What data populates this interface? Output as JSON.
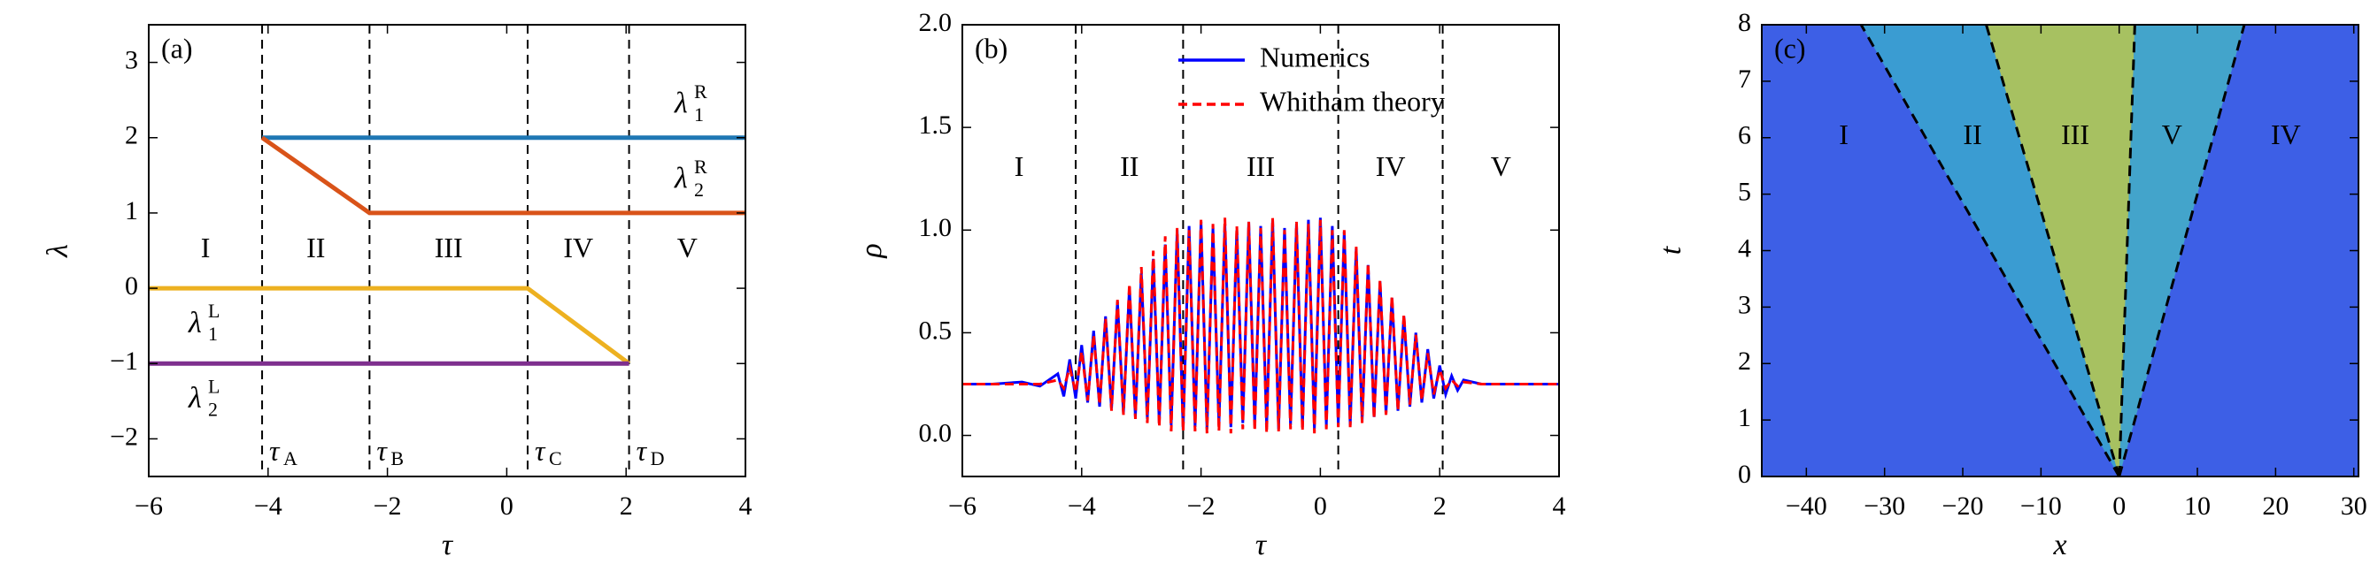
{
  "chart_data": [
    {
      "type": "line",
      "panel_label": "(a)",
      "xlabel": "τ",
      "ylabel": "λ",
      "xlim": [
        -6,
        4
      ],
      "ylim": [
        -2.5,
        3.5
      ],
      "xticks": [
        {
          "value": -6,
          "label": "−6"
        },
        {
          "value": -4,
          "label": "−4"
        },
        {
          "value": -2,
          "label": "−2"
        },
        0,
        2,
        4
      ],
      "yticks": [
        {
          "value": -2,
          "label": "−2"
        },
        {
          "value": -1,
          "label": "−1"
        },
        0,
        1,
        2,
        3
      ],
      "series": [
        {
          "symbol": "λ",
          "superscript": "R",
          "subscript": "1",
          "color": "#1f77b4",
          "x": [
            -4.1,
            4
          ],
          "values": [
            2,
            2
          ]
        },
        {
          "symbol": "λ",
          "superscript": "R",
          "subscript": "2",
          "color": "#d95319",
          "x": [
            -4.1,
            -2.3,
            4
          ],
          "values": [
            2,
            1,
            1
          ]
        },
        {
          "symbol": "λ",
          "superscript": "L",
          "subscript": "1",
          "color": "#edb120",
          "x": [
            -6,
            0.35,
            2.05
          ],
          "values": [
            0,
            0,
            -1
          ]
        },
        {
          "symbol": "λ",
          "superscript": "L",
          "subscript": "2",
          "color": "#7e2f8e",
          "x": [
            -6,
            2.05
          ],
          "values": [
            -1,
            -1
          ]
        }
      ],
      "vlines": [
        {
          "x": -4.1,
          "symbol": "τ",
          "subscript": "A"
        },
        {
          "x": -2.3,
          "symbol": "τ",
          "subscript": "B"
        },
        {
          "x": 0.35,
          "symbol": "τ",
          "subscript": "C"
        },
        {
          "x": 2.05,
          "symbol": "τ",
          "subscript": "D"
        }
      ],
      "regions": [
        "I",
        "II",
        "III",
        "IV",
        "V"
      ]
    },
    {
      "type": "line",
      "panel_label": "(b)",
      "xlabel": "τ",
      "ylabel": "ρ",
      "xlim": [
        -6,
        4
      ],
      "ylim": [
        -0.2,
        2.0
      ],
      "xticks": [
        {
          "value": -6,
          "label": "−6"
        },
        {
          "value": -4,
          "label": "−4"
        },
        {
          "value": -2,
          "label": "−2"
        },
        0,
        2,
        4
      ],
      "yticks": [
        {
          "value": 0,
          "label": "0.0"
        },
        {
          "value": 0.5,
          "label": "0.5"
        },
        {
          "value": 1,
          "label": "1.0"
        },
        {
          "value": 1.5,
          "label": "1.5"
        },
        {
          "value": 2,
          "label": "2.0"
        }
      ],
      "legend": "upper right",
      "x": [
        -6,
        -5.5,
        -5,
        -4.7,
        -4.4,
        -4.3,
        -4.2,
        -4.1,
        -4.0,
        -3.9,
        -3.8,
        -3.7,
        -3.6,
        -3.5,
        -3.4,
        -3.3,
        -3.2,
        -3.1,
        -3.0,
        -2.9,
        -2.8,
        -2.7,
        -2.6,
        -2.5,
        -2.4,
        -2.3,
        -2.2,
        -2.1,
        -2.0,
        -1.9,
        -1.8,
        -1.7,
        -1.6,
        -1.5,
        -1.4,
        -1.3,
        -1.2,
        -1.1,
        -1.0,
        -0.9,
        -0.8,
        -0.7,
        -0.6,
        -0.5,
        -0.4,
        -0.3,
        -0.2,
        -0.1,
        0.0,
        0.1,
        0.2,
        0.3,
        0.4,
        0.5,
        0.6,
        0.7,
        0.8,
        0.9,
        1.0,
        1.1,
        1.2,
        1.3,
        1.4,
        1.5,
        1.6,
        1.7,
        1.8,
        1.9,
        2.0,
        2.1,
        2.2,
        2.3,
        2.4,
        2.7,
        3,
        3.5,
        4
      ],
      "series": [
        {
          "name": "Numerics",
          "color": "#0000ff",
          "linestyle": "solid",
          "values": [
            0.25,
            0.25,
            0.26,
            0.24,
            0.3,
            0.19,
            0.37,
            0.18,
            0.44,
            0.16,
            0.51,
            0.14,
            0.58,
            0.13,
            0.65,
            0.11,
            0.72,
            0.09,
            0.79,
            0.08,
            0.86,
            0.06,
            0.93,
            0.05,
            1.0,
            0.03,
            1.02,
            0.04,
            1.04,
            0.03,
            1.01,
            0.05,
            1.03,
            0.04,
            1.0,
            0.06,
            1.04,
            0.05,
            1.02,
            0.04,
            1.05,
            0.03,
            1.01,
            0.05,
            1.03,
            0.04,
            1.05,
            0.03,
            1.06,
            0.05,
            1.02,
            0.06,
            0.99,
            0.05,
            0.91,
            0.07,
            0.83,
            0.09,
            0.75,
            0.11,
            0.67,
            0.12,
            0.58,
            0.14,
            0.5,
            0.16,
            0.42,
            0.18,
            0.34,
            0.2,
            0.29,
            0.22,
            0.27,
            0.25,
            0.25,
            0.25,
            0.25
          ]
        },
        {
          "name": "Whitham theory",
          "color": "#ff0000",
          "linestyle": "dashed",
          "values": [
            0.25,
            0.25,
            0.25,
            0.25,
            0.27,
            0.23,
            0.33,
            0.21,
            0.41,
            0.17,
            0.49,
            0.15,
            0.57,
            0.12,
            0.66,
            0.1,
            0.74,
            0.08,
            0.82,
            0.06,
            0.9,
            0.04,
            0.97,
            0.02,
            1.01,
            0.02,
            1.0,
            0.02,
            1.05,
            0.01,
            1.03,
            0.02,
            1.06,
            0.01,
            1.02,
            0.03,
            1.04,
            0.02,
            1.01,
            0.01,
            1.06,
            0.02,
            1.0,
            0.03,
            1.04,
            0.02,
            1.03,
            0.01,
            1.05,
            0.03,
            1.0,
            0.04,
            1.0,
            0.04,
            0.92,
            0.06,
            0.84,
            0.08,
            0.76,
            0.1,
            0.68,
            0.12,
            0.59,
            0.15,
            0.49,
            0.17,
            0.4,
            0.2,
            0.32,
            0.23,
            0.27,
            0.24,
            0.26,
            0.25,
            0.25,
            0.25,
            0.25
          ]
        }
      ],
      "vlines": [
        {
          "x": -4.1
        },
        {
          "x": -2.3
        },
        {
          "x": 0.3
        },
        {
          "x": 2.05
        }
      ],
      "regions": [
        "I",
        "II",
        "III",
        "IV",
        "V"
      ]
    },
    {
      "type": "heatmap",
      "panel_label": "(c)",
      "xlabel": "x",
      "ylabel": "t",
      "xlim": [
        -45.7,
        30.6
      ],
      "ylim": [
        0,
        8
      ],
      "xticks": [
        {
          "value": -40,
          "label": "−40"
        },
        {
          "value": -30,
          "label": "−30"
        },
        {
          "value": -20,
          "label": "−20"
        },
        {
          "value": -10,
          "label": "−10"
        },
        0,
        10,
        20,
        30
      ],
      "yticks": [
        0,
        1,
        2,
        3,
        4,
        5,
        6,
        7,
        8
      ],
      "background": "#3d5fe6",
      "zone_colors": [
        "#3aa3cf",
        "#b3cc52",
        "#44acc8"
      ],
      "text_color": "#ffffff",
      "dashed_lines": [
        {
          "x": [
            0,
            -33
          ],
          "values": [
            0,
            8
          ]
        },
        {
          "x": [
            0,
            -17
          ],
          "values": [
            0,
            8
          ]
        },
        {
          "x": [
            0,
            2
          ],
          "values": [
            0,
            8
          ]
        },
        {
          "x": [
            0,
            16
          ],
          "values": [
            0,
            8
          ]
        }
      ],
      "regions": [
        "I",
        "II",
        "III",
        "V",
        "IV"
      ]
    }
  ]
}
